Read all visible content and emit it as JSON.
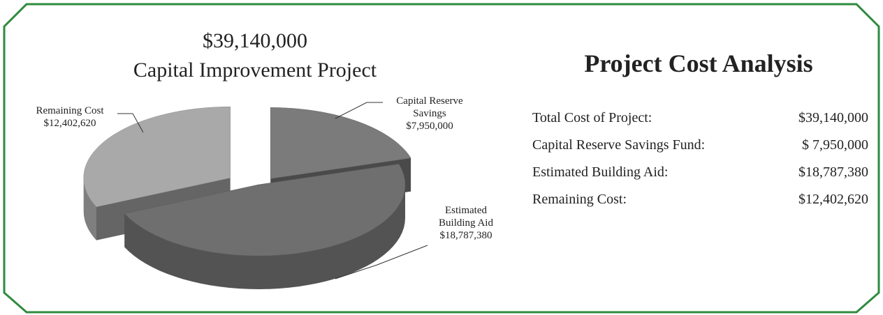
{
  "chart_data": {
    "type": "pie",
    "title": "$39,140,000",
    "subtitle": "Capital Improvement Project",
    "categories": [
      "Capital Reserve Savings",
      "Estimated Building Aid",
      "Remaining Cost"
    ],
    "values": [
      7950000,
      18787380,
      12402620
    ],
    "value_labels": [
      "$7,950,000",
      "$18,787,380",
      "$12,402,620"
    ],
    "colors": [
      "#7b7b7b",
      "#6f6f6f",
      "#a9a9a9"
    ]
  },
  "panel": {
    "title": "Project Cost Analysis",
    "rows": [
      [
        "Total Cost of Project:",
        "$39,140,000"
      ],
      [
        "Capital Reserve Savings Fund:",
        "$ 7,950,000"
      ],
      [
        "Estimated Building Aid:",
        "$18,787,380"
      ],
      [
        "Remaining Cost:",
        "$12,402,620"
      ]
    ]
  }
}
